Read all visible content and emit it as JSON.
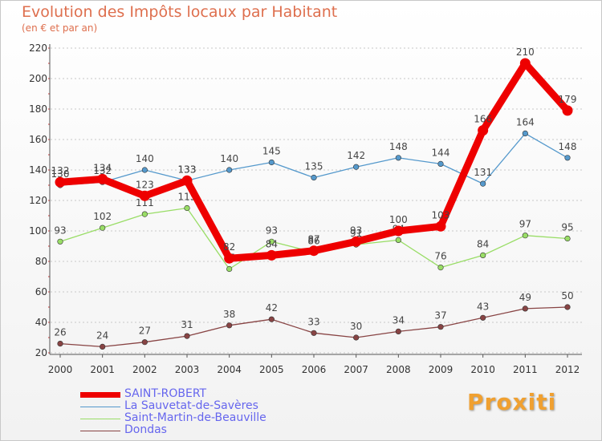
{
  "header": {
    "title": "Evolution des Impôts locaux par Habitant",
    "subtitle": "(en € et par an)"
  },
  "brand": {
    "logo_text": "Proxiti"
  },
  "chart_data": {
    "type": "line",
    "title": "Evolution des Impôts locaux par Habitant",
    "subtitle": "(en € et par an)",
    "xlabel": "",
    "ylabel": "",
    "x": [
      "2000",
      "2001",
      "2002",
      "2003",
      "2004",
      "2005",
      "2006",
      "2007",
      "2008",
      "2009",
      "2010",
      "2011",
      "2012"
    ],
    "ylim": [
      20,
      220
    ],
    "yticks": [
      20,
      40,
      60,
      80,
      100,
      120,
      140,
      160,
      180,
      200,
      220
    ],
    "grid": "horizontal dashed",
    "legend": "bottom-left",
    "series": [
      {
        "name": "SAINT-ROBERT",
        "color": "#ee0000",
        "values": [
          132,
          134,
          123,
          133,
          82,
          84,
          87,
          93,
          100,
          103,
          166,
          210,
          179
        ],
        "labels": [
          "132",
          "134",
          "123",
          "133",
          "82",
          "84",
          "87",
          "93",
          "100",
          "103",
          "166",
          "210",
          "179"
        ]
      },
      {
        "name": "La Sauvetat-de-Savères",
        "color": "#5599cc",
        "values": [
          130,
          132,
          140,
          133,
          140,
          145,
          135,
          142,
          148,
          144,
          131,
          164,
          148
        ],
        "labels": [
          "130",
          "132",
          "140",
          "133",
          "140",
          "145",
          "135",
          "142",
          "148",
          "144",
          "131",
          "164",
          "148"
        ]
      },
      {
        "name": "Saint-Martin-de-Beauville",
        "color": "#99dd66",
        "values": [
          93,
          102,
          111,
          115,
          75,
          93,
          86,
          91,
          94,
          76,
          84,
          97,
          95
        ],
        "labels": [
          "93",
          "102",
          "111",
          "115",
          "75",
          "93",
          "86",
          "91",
          "94",
          "76",
          "84",
          "97",
          "95"
        ]
      },
      {
        "name": "Dondas",
        "color": "#884444",
        "values": [
          26,
          24,
          27,
          31,
          38,
          42,
          33,
          30,
          34,
          37,
          43,
          49,
          50
        ],
        "labels": [
          "26",
          "24",
          "27",
          "31",
          "38",
          "42",
          "33",
          "30",
          "34",
          "37",
          "43",
          "49",
          "50"
        ]
      }
    ]
  }
}
